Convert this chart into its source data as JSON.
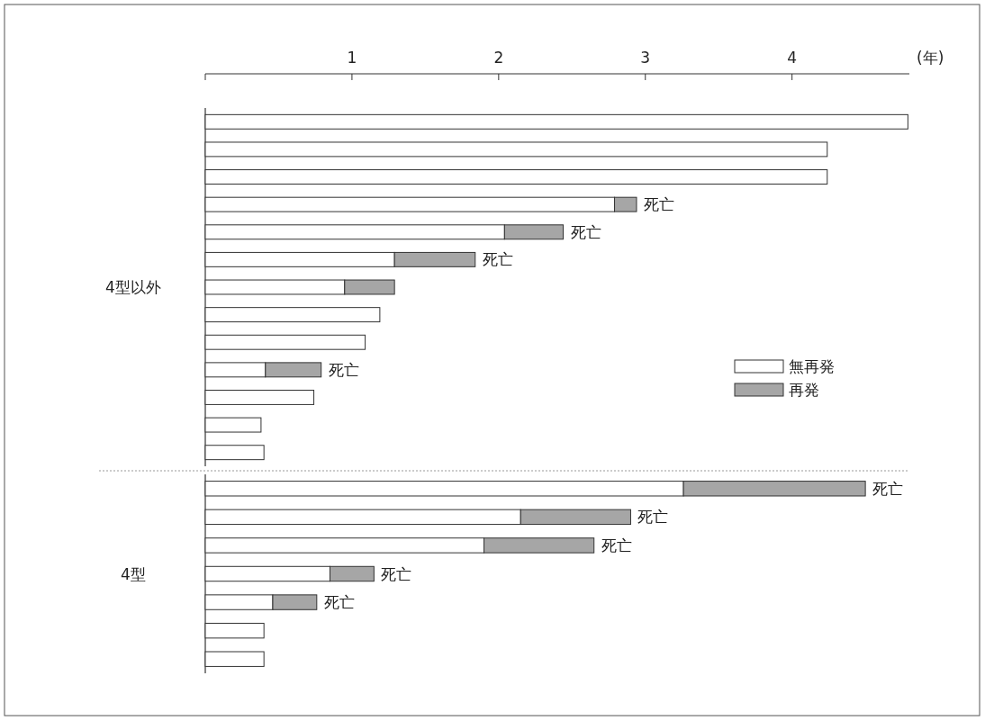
{
  "chart_data": [
    {
      "type": "bar",
      "orientation": "horizontal",
      "stacked": true,
      "ylabel": "4型以外",
      "xlabel": "(年)",
      "xlim": [
        0,
        4.8
      ],
      "xticks": [
        {
          "value": 0,
          "label": null
        },
        1,
        2,
        3,
        4
      ],
      "tick_labels": "x",
      "legend": "right",
      "categories": [
        null,
        null,
        null,
        null,
        null,
        null,
        null,
        null,
        null,
        null,
        null,
        null,
        null
      ],
      "series": [
        {
          "name": "無再発",
          "color": "#ffffff",
          "values": [
            4.79,
            4.24,
            4.24,
            2.79,
            2.04,
            1.29,
            0.95,
            1.19,
            1.09,
            0.41,
            0.74,
            0.38,
            0.4
          ]
        },
        {
          "name": "再発",
          "color": "#a6a6a6",
          "values": [
            null,
            null,
            null,
            0.15,
            0.4,
            0.55,
            0.34,
            null,
            null,
            0.38,
            null,
            null,
            null
          ],
          "value_labels": [
            null,
            null,
            null,
            "死亡",
            "死亡",
            "死亡",
            null,
            null,
            null,
            "死亡",
            null,
            null,
            null
          ]
        }
      ]
    },
    {
      "type": "bar",
      "orientation": "horizontal",
      "stacked": true,
      "ylabel": "4型",
      "xlim": [
        0,
        4.8
      ],
      "tick_labels": false,
      "categories": [
        null,
        null,
        null,
        null,
        null,
        null,
        null
      ],
      "series": [
        {
          "color": "#ffffff",
          "values": [
            3.26,
            2.15,
            1.9,
            0.85,
            0.46,
            0.4,
            0.4
          ]
        },
        {
          "color": "#a6a6a6",
          "values": [
            1.24,
            0.75,
            0.75,
            0.3,
            0.3,
            null,
            null
          ],
          "value_labels": [
            "死亡",
            "死亡",
            "死亡",
            "死亡",
            "死亡",
            null,
            null
          ]
        }
      ]
    }
  ]
}
